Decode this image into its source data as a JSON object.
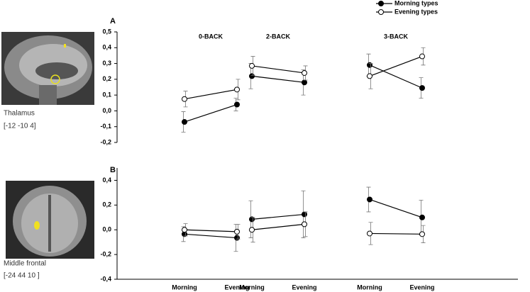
{
  "chart_data": [
    {
      "type": "line",
      "panel": "A",
      "groups": [
        "0-BACK",
        "2-BACK",
        "3-BACK"
      ],
      "ylim": [
        -0.2,
        0.5
      ],
      "yticks": [
        {
          "value": -0.2,
          "label": "-0,2"
        },
        {
          "value": -0.1,
          "label": "-0,1"
        },
        {
          "value": 0,
          "label": "0,0"
        },
        {
          "value": 0.1,
          "label": "0,1"
        },
        {
          "value": 0.2,
          "label": "0,2"
        },
        {
          "value": 0.3,
          "label": "0,3"
        },
        {
          "value": 0.4,
          "label": "0,4"
        },
        {
          "value": 0.5,
          "label": "0,5"
        }
      ],
      "series": [
        {
          "name": "Morning types",
          "color": "#000000",
          "marker_fill": "#000000",
          "values": [
            -0.07,
            0.04,
            0.22,
            0.18,
            0.29,
            0.145
          ],
          "errors": [
            0.065,
            0.04,
            0.08,
            0.08,
            0.07,
            0.065
          ]
        },
        {
          "name": "Evening types",
          "color": "#000000",
          "marker_fill": "#ffffff",
          "values": [
            0.075,
            0.135,
            0.285,
            0.24,
            0.22,
            0.345
          ],
          "errors": [
            0.05,
            0.065,
            0.06,
            0.045,
            0.08,
            0.055
          ]
        }
      ]
    },
    {
      "type": "line",
      "panel": "B",
      "categories": [
        "Morning",
        "Evening",
        "Morning",
        "Evening",
        "Morning",
        "Evening"
      ],
      "ylim": [
        -0.4,
        0.5
      ],
      "yticks": [
        {
          "value": -0.4,
          "label": "-0,4"
        },
        {
          "value": -0.2,
          "label": "-0,2"
        },
        {
          "value": 0,
          "label": "0,0"
        },
        {
          "value": 0.2,
          "label": "0,2"
        },
        {
          "value": 0.4,
          "label": "0,4"
        }
      ],
      "series": [
        {
          "name": "Morning types",
          "color": "#000000",
          "marker_fill": "#000000",
          "values": [
            -0.035,
            -0.065,
            0.085,
            0.125,
            0.245,
            0.1
          ],
          "errors": [
            0.06,
            0.11,
            0.15,
            0.19,
            0.1,
            0.14
          ]
        },
        {
          "name": "Evening types",
          "color": "#000000",
          "marker_fill": "#ffffff",
          "values": [
            0,
            -0.015,
            0,
            0.045,
            -0.03,
            -0.035
          ],
          "errors": [
            0.05,
            0.06,
            0.1,
            0.1,
            0.09,
            0.07
          ]
        }
      ]
    }
  ],
  "regions": [
    {
      "label": "Thalamus",
      "coords": "[-12 -10 4]"
    },
    {
      "label": "Middle frontal",
      "coords": "[-24 44 10 ]"
    }
  ]
}
